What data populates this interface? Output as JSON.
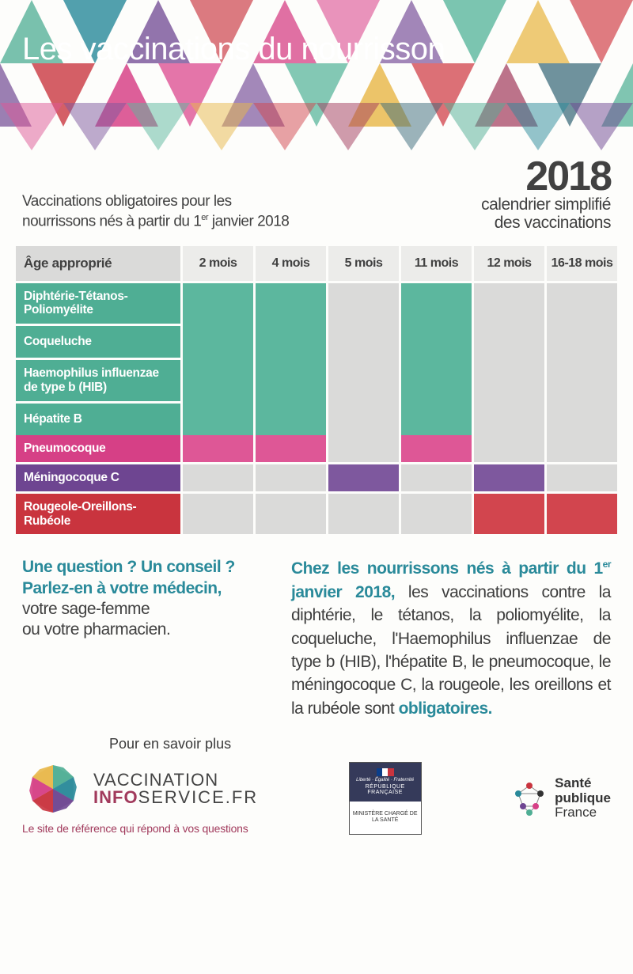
{
  "header": {
    "title": "Les vaccinations du nourrisson",
    "triangles": {
      "colors": [
        "#4fae94",
        "#2a8a9a",
        "#6e4591",
        "#c9343e",
        "#d64086",
        "#de5796",
        "#7e589e",
        "#5cb79e",
        "#e8b84a",
        "#d2454e",
        "#a13a5c",
        "#3a6a7a"
      ]
    }
  },
  "subhead": {
    "left_line1": "Vaccinations obligatoires pour les",
    "left_line2_a": "nourrissons nés à partir du 1",
    "left_line2_sup": "er",
    "left_line2_b": " janvier 2018",
    "year": "2018",
    "year_sub1": "calendrier simplifié",
    "year_sub2": "des vaccinations"
  },
  "table": {
    "header_label": "Âge approprié",
    "ages": [
      "2 mois",
      "4 mois",
      "5 mois",
      "11 mois",
      "12 mois",
      "16-18 mois"
    ],
    "group1": {
      "color_label": "#4fae94",
      "color_on": "#5cb79e",
      "vaccines": [
        "Diphtérie-Tétanos-Poliomyélite",
        "Coqueluche",
        "Haemophilus influenzae de type b (HIB)",
        "Hépatite B"
      ],
      "schedule": [
        true,
        true,
        false,
        true,
        false,
        false
      ]
    },
    "rows": [
      {
        "key": "pneu",
        "label": "Pneumocoque",
        "color_label": "#d64086",
        "color_on": "#de5796",
        "schedule": [
          true,
          true,
          false,
          true,
          false,
          false
        ]
      },
      {
        "key": "men",
        "label": "Méningocoque C",
        "color_label": "#6e4591",
        "color_on": "#7e589e",
        "schedule": [
          false,
          false,
          true,
          false,
          true,
          false
        ]
      },
      {
        "key": "ror",
        "label": "Rougeole-Oreillons-Rubéole",
        "color_label": "#c9343e",
        "color_on": "#d2454e",
        "schedule": [
          false,
          false,
          false,
          false,
          true,
          true
        ]
      }
    ],
    "empty_color": "#dadad9",
    "header_bg": "#ececea"
  },
  "body": {
    "q1": "Une question ? Un conseil ?",
    "q2": "Parlez-en à votre médecin,",
    "q3": "votre sage-femme",
    "q4": "ou votre pharmacien.",
    "main_lead": "Chez les nourrissons nés à partir du 1",
    "main_lead_sup": "er",
    "main_lead_b": " janvier 2018, ",
    "main_body": "les vaccinations contre la diphtérie, le tétanos, la poliomyélite, la coqueluche, l'Haemophilus influenzae de type b (HIB), l'hépatite B, le pneumocoque, le méningocoque C, la rougeole, les oreillons et la rubéole sont ",
    "main_obl": "obligatoires."
  },
  "footer": {
    "savoir": "Pour en savoir plus",
    "vis_l1": "VACCINATION",
    "vis_info": "INFO",
    "vis_svc": "SERVICE.FR",
    "tagline": "Le site de référence qui répond à vos questions",
    "min_lef": "Liberté · Égalité · Fraternité",
    "min_rf": "RÉPUBLIQUE FRANÇAISE",
    "min_bot": "MINISTÈRE CHARGÉ DE LA SANTÉ",
    "spf_l1": "Santé",
    "spf_l2": "publique",
    "spf_l3": "France",
    "hex_colors": [
      "#4fae94",
      "#2a8a9a",
      "#6e4591",
      "#c9343e",
      "#d64086",
      "#e8b84a"
    ],
    "spf_dot_colors": [
      "#c9343e",
      "#2a8a9a",
      "#333333",
      "#6e4591",
      "#d64086",
      "#4fae94"
    ],
    "flag": [
      "#0b3e8a",
      "#ffffff",
      "#c9343e"
    ]
  }
}
